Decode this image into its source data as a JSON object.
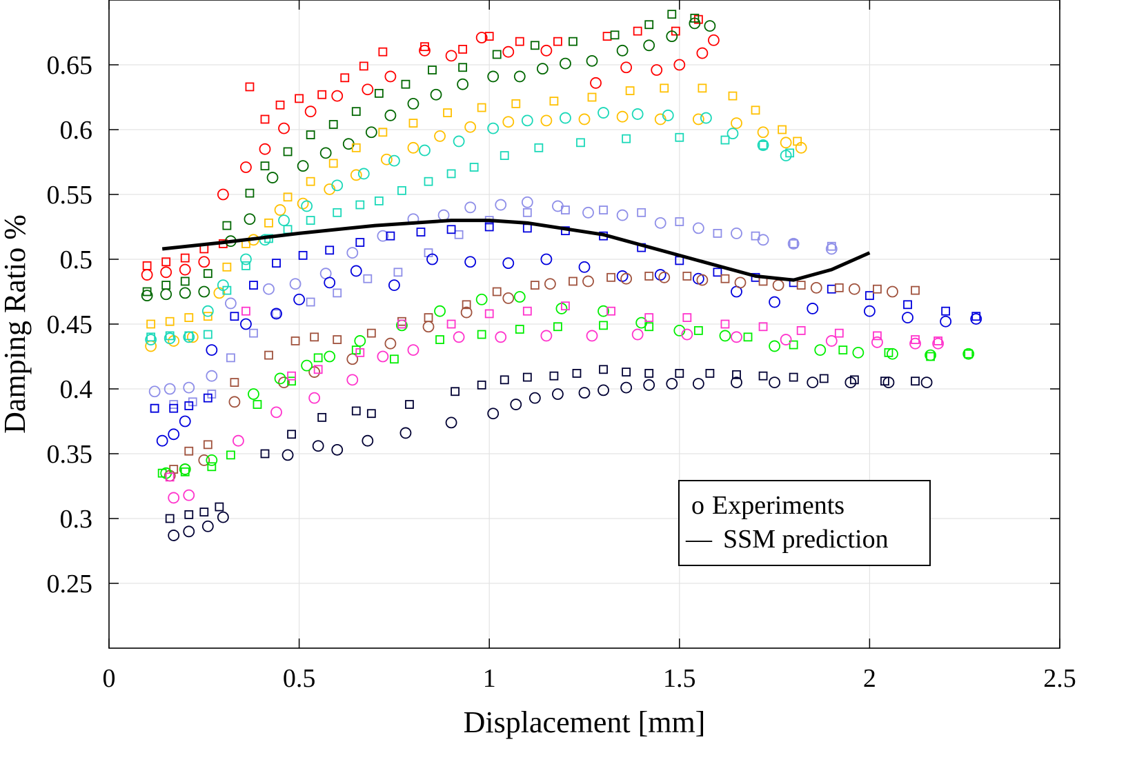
{
  "chart_data": {
    "type": "scatter",
    "title": "",
    "xlabel": "Displacement [mm]",
    "ylabel": "Damping Ratio %",
    "xlim": [
      0,
      2.5
    ],
    "ylim": [
      0.2,
      0.7
    ],
    "xticks": [
      0,
      0.5,
      1,
      1.5,
      2,
      2.5
    ],
    "xtick_labels": [
      "0",
      "0.5",
      "1",
      "1.5",
      "2",
      "2.5"
    ],
    "yticks": [
      0.25,
      0.3,
      0.35,
      0.4,
      0.45,
      0.5,
      0.55,
      0.6,
      0.65
    ],
    "ytick_labels": [
      "0.25",
      "0.3",
      "0.35",
      "0.4",
      "0.45",
      "0.5",
      "0.55",
      "0.6",
      "0.65"
    ],
    "grid": true,
    "legend": {
      "position": "bottom-right",
      "entries": [
        {
          "marker": "o",
          "label": "Experiments"
        },
        {
          "marker": "—",
          "label": "SSM prediction"
        }
      ]
    },
    "series": [
      {
        "name": "red",
        "color": "#ff0000",
        "marker": "circle",
        "x": [
          0.1,
          0.15,
          0.2,
          0.25,
          0.3,
          0.36,
          0.41,
          0.46,
          0.53,
          0.6,
          0.68,
          0.74,
          0.83,
          0.9,
          0.98,
          1.05,
          1.15,
          1.28,
          1.36,
          1.44,
          1.5,
          1.56,
          1.59
        ],
        "y": [
          0.488,
          0.49,
          0.492,
          0.498,
          0.55,
          0.571,
          0.585,
          0.601,
          0.614,
          0.626,
          0.631,
          0.641,
          0.661,
          0.657,
          0.671,
          0.66,
          0.661,
          0.636,
          0.648,
          0.646,
          0.65,
          0.659,
          0.669
        ]
      },
      {
        "name": "red",
        "color": "#ff0000",
        "marker": "square",
        "x": [
          0.1,
          0.15,
          0.2,
          0.25,
          0.3,
          0.37,
          0.41,
          0.45,
          0.5,
          0.56,
          0.62,
          0.67,
          0.72,
          0.83,
          0.93,
          1,
          1.08,
          1.18,
          1.31,
          1.39,
          1.49,
          1.55
        ],
        "y": [
          0.495,
          0.498,
          0.501,
          0.508,
          0.512,
          0.633,
          0.608,
          0.619,
          0.624,
          0.627,
          0.64,
          0.649,
          0.66,
          0.664,
          0.662,
          0.672,
          0.668,
          0.668,
          0.672,
          0.676,
          0.676,
          0.685
        ]
      },
      {
        "name": "dark green",
        "color": "#006600",
        "marker": "circle",
        "x": [
          0.1,
          0.15,
          0.2,
          0.25,
          0.32,
          0.37,
          0.43,
          0.51,
          0.57,
          0.63,
          0.69,
          0.74,
          0.8,
          0.86,
          0.93,
          1.01,
          1.08,
          1.14,
          1.2,
          1.27,
          1.35,
          1.42,
          1.48,
          1.54,
          1.58
        ],
        "y": [
          0.472,
          0.473,
          0.474,
          0.475,
          0.514,
          0.531,
          0.563,
          0.572,
          0.582,
          0.589,
          0.598,
          0.611,
          0.62,
          0.627,
          0.635,
          0.641,
          0.641,
          0.647,
          0.651,
          0.653,
          0.661,
          0.665,
          0.672,
          0.682,
          0.68
        ]
      },
      {
        "name": "dark green",
        "color": "#006600",
        "marker": "square",
        "x": [
          0.1,
          0.15,
          0.2,
          0.26,
          0.31,
          0.37,
          0.41,
          0.47,
          0.53,
          0.59,
          0.65,
          0.71,
          0.78,
          0.85,
          0.93,
          1.02,
          1.12,
          1.22,
          1.33,
          1.42,
          1.48,
          1.54
        ],
        "y": [
          0.475,
          0.48,
          0.483,
          0.489,
          0.526,
          0.551,
          0.572,
          0.583,
          0.596,
          0.604,
          0.614,
          0.628,
          0.635,
          0.646,
          0.648,
          0.658,
          0.665,
          0.668,
          0.673,
          0.681,
          0.689,
          0.686
        ]
      },
      {
        "name": "yellow",
        "color": "#ffc000",
        "marker": "circle",
        "x": [
          0.11,
          0.17,
          0.22,
          0.29,
          0.38,
          0.45,
          0.51,
          0.58,
          0.65,
          0.73,
          0.8,
          0.87,
          0.95,
          1.05,
          1.15,
          1.25,
          1.35,
          1.45,
          1.55,
          1.65,
          1.72,
          1.78,
          1.82
        ],
        "y": [
          0.433,
          0.437,
          0.44,
          0.474,
          0.515,
          0.538,
          0.543,
          0.554,
          0.565,
          0.577,
          0.586,
          0.595,
          0.602,
          0.606,
          0.607,
          0.608,
          0.61,
          0.608,
          0.608,
          0.605,
          0.598,
          0.59,
          0.586
        ]
      },
      {
        "name": "yellow",
        "color": "#ffc000",
        "marker": "square",
        "x": [
          0.11,
          0.16,
          0.21,
          0.26,
          0.31,
          0.36,
          0.42,
          0.47,
          0.53,
          0.59,
          0.65,
          0.72,
          0.8,
          0.89,
          0.98,
          1.07,
          1.17,
          1.27,
          1.37,
          1.46,
          1.56,
          1.64,
          1.7,
          1.77,
          1.81
        ],
        "y": [
          0.45,
          0.452,
          0.455,
          0.456,
          0.494,
          0.512,
          0.528,
          0.548,
          0.56,
          0.574,
          0.586,
          0.598,
          0.605,
          0.613,
          0.617,
          0.62,
          0.622,
          0.625,
          0.63,
          0.632,
          0.632,
          0.626,
          0.615,
          0.6,
          0.591
        ]
      },
      {
        "name": "cyan",
        "color": "#1ad8b8",
        "marker": "circle",
        "x": [
          0.11,
          0.16,
          0.21,
          0.26,
          0.3,
          0.36,
          0.41,
          0.46,
          0.52,
          0.6,
          0.67,
          0.75,
          0.83,
          0.92,
          1.01,
          1.1,
          1.2,
          1.3,
          1.39,
          1.47,
          1.57,
          1.64,
          1.72,
          1.78
        ],
        "y": [
          0.438,
          0.439,
          0.44,
          0.46,
          0.48,
          0.5,
          0.515,
          0.53,
          0.541,
          0.557,
          0.566,
          0.576,
          0.584,
          0.591,
          0.601,
          0.607,
          0.609,
          0.613,
          0.612,
          0.611,
          0.609,
          0.597,
          0.588,
          0.58
        ]
      },
      {
        "name": "cyan",
        "color": "#1ad8b8",
        "marker": "square",
        "x": [
          0.11,
          0.16,
          0.21,
          0.26,
          0.31,
          0.36,
          0.42,
          0.47,
          0.53,
          0.6,
          0.66,
          0.71,
          0.77,
          0.84,
          0.9,
          0.96,
          1.04,
          1.13,
          1.24,
          1.36,
          1.5,
          1.62,
          1.72,
          1.79
        ],
        "y": [
          0.44,
          0.441,
          0.441,
          0.442,
          0.476,
          0.495,
          0.516,
          0.523,
          0.53,
          0.536,
          0.542,
          0.545,
          0.553,
          0.56,
          0.566,
          0.571,
          0.58,
          0.586,
          0.59,
          0.593,
          0.594,
          0.592,
          0.588,
          0.582
        ]
      },
      {
        "name": "lavender",
        "color": "#8e8ee8",
        "marker": "circle",
        "x": [
          0.12,
          0.16,
          0.21,
          0.27,
          0.32,
          0.42,
          0.49,
          0.57,
          0.64,
          0.72,
          0.8,
          0.88,
          0.95,
          1.03,
          1.1,
          1.18,
          1.26,
          1.35,
          1.45,
          1.55,
          1.65,
          1.72,
          1.8,
          1.9
        ],
        "y": [
          0.398,
          0.4,
          0.401,
          0.41,
          0.466,
          0.477,
          0.481,
          0.489,
          0.505,
          0.518,
          0.531,
          0.534,
          0.54,
          0.542,
          0.544,
          0.541,
          0.536,
          0.534,
          0.528,
          0.524,
          0.52,
          0.515,
          0.512,
          0.508
        ]
      },
      {
        "name": "lavender",
        "color": "#8e8ee8",
        "marker": "square",
        "x": [
          0.12,
          0.17,
          0.22,
          0.27,
          0.32,
          0.38,
          0.44,
          0.53,
          0.6,
          0.68,
          0.76,
          0.84,
          0.92,
          1,
          1.1,
          1.2,
          1.3,
          1.4,
          1.5,
          1.6,
          1.7,
          1.8,
          1.9
        ],
        "y": [
          0.385,
          0.388,
          0.39,
          0.396,
          0.424,
          0.443,
          0.458,
          0.467,
          0.474,
          0.485,
          0.49,
          0.505,
          0.519,
          0.53,
          0.536,
          0.538,
          0.538,
          0.536,
          0.529,
          0.52,
          0.518,
          0.512,
          0.51
        ]
      },
      {
        "name": "blue",
        "color": "#0000dd",
        "marker": "circle",
        "x": [
          0.14,
          0.17,
          0.2,
          0.27,
          0.36,
          0.44,
          0.5,
          0.58,
          0.65,
          0.75,
          0.85,
          0.95,
          1.05,
          1.15,
          1.25,
          1.35,
          1.45,
          1.55,
          1.65,
          1.75,
          1.85,
          2,
          2.1,
          2.2,
          2.28
        ],
        "y": [
          0.36,
          0.365,
          0.375,
          0.43,
          0.45,
          0.458,
          0.469,
          0.482,
          0.491,
          0.48,
          0.5,
          0.498,
          0.497,
          0.5,
          0.494,
          0.487,
          0.488,
          0.485,
          0.475,
          0.467,
          0.462,
          0.46,
          0.455,
          0.452,
          0.454
        ]
      },
      {
        "name": "blue",
        "color": "#0000dd",
        "marker": "square",
        "x": [
          0.12,
          0.17,
          0.21,
          0.26,
          0.33,
          0.38,
          0.44,
          0.51,
          0.58,
          0.66,
          0.74,
          0.82,
          0.9,
          1,
          1.1,
          1.2,
          1.3,
          1.4,
          1.5,
          1.6,
          1.7,
          1.8,
          1.9,
          2,
          2.1,
          2.2,
          2.28
        ],
        "y": [
          0.385,
          0.385,
          0.387,
          0.393,
          0.456,
          0.48,
          0.497,
          0.503,
          0.507,
          0.513,
          0.518,
          0.521,
          0.523,
          0.525,
          0.524,
          0.522,
          0.518,
          0.509,
          0.499,
          0.49,
          0.486,
          0.482,
          0.477,
          0.472,
          0.465,
          0.46,
          0.456
        ]
      },
      {
        "name": "brown",
        "color": "#a0523d",
        "marker": "circle",
        "x": [
          0.16,
          0.2,
          0.25,
          0.33,
          0.46,
          0.54,
          0.64,
          0.74,
          0.84,
          0.94,
          1.05,
          1.16,
          1.26,
          1.36,
          1.46,
          1.56,
          1.66,
          1.76,
          1.86,
          1.96,
          2.06
        ],
        "y": [
          0.333,
          0.338,
          0.345,
          0.39,
          0.405,
          0.413,
          0.423,
          0.435,
          0.448,
          0.459,
          0.47,
          0.481,
          0.483,
          0.485,
          0.486,
          0.484,
          0.482,
          0.48,
          0.478,
          0.477,
          0.475
        ]
      },
      {
        "name": "brown",
        "color": "#a0523d",
        "marker": "square",
        "x": [
          0.17,
          0.21,
          0.26,
          0.33,
          0.42,
          0.49,
          0.54,
          0.6,
          0.69,
          0.77,
          0.84,
          0.94,
          1.02,
          1.12,
          1.22,
          1.32,
          1.42,
          1.52,
          1.62,
          1.72,
          1.82,
          1.92,
          2.02,
          2.12
        ],
        "y": [
          0.338,
          0.352,
          0.357,
          0.405,
          0.426,
          0.437,
          0.44,
          0.438,
          0.443,
          0.452,
          0.455,
          0.465,
          0.475,
          0.48,
          0.483,
          0.486,
          0.487,
          0.487,
          0.485,
          0.483,
          0.48,
          0.478,
          0.477,
          0.476
        ]
      },
      {
        "name": "green",
        "color": "#00ee00",
        "marker": "circle",
        "x": [
          0.15,
          0.2,
          0.27,
          0.38,
          0.45,
          0.52,
          0.58,
          0.66,
          0.77,
          0.87,
          0.98,
          1.08,
          1.19,
          1.3,
          1.4,
          1.5,
          1.62,
          1.75,
          1.87,
          1.97,
          2.06,
          2.16,
          2.26
        ],
        "y": [
          0.335,
          0.338,
          0.345,
          0.396,
          0.408,
          0.418,
          0.425,
          0.437,
          0.449,
          0.46,
          0.469,
          0.471,
          0.462,
          0.46,
          0.451,
          0.445,
          0.441,
          0.433,
          0.43,
          0.428,
          0.427,
          0.426,
          0.427
        ]
      },
      {
        "name": "green",
        "color": "#00ee00",
        "marker": "square",
        "x": [
          0.14,
          0.2,
          0.27,
          0.32,
          0.39,
          0.48,
          0.55,
          0.65,
          0.75,
          0.87,
          0.98,
          1.08,
          1.18,
          1.3,
          1.42,
          1.55,
          1.68,
          1.8,
          1.93,
          2.05,
          2.16,
          2.26
        ],
        "y": [
          0.335,
          0.336,
          0.34,
          0.349,
          0.388,
          0.406,
          0.424,
          0.43,
          0.423,
          0.438,
          0.442,
          0.446,
          0.448,
          0.449,
          0.448,
          0.445,
          0.44,
          0.434,
          0.43,
          0.428,
          0.425,
          0.427
        ]
      },
      {
        "name": "magenta",
        "color": "#ff33cc",
        "marker": "circle",
        "x": [
          0.17,
          0.21,
          0.34,
          0.44,
          0.54,
          0.64,
          0.72,
          0.8,
          0.92,
          1.03,
          1.15,
          1.27,
          1.39,
          1.52,
          1.65,
          1.78,
          1.9,
          2.02,
          2.12,
          2.18
        ],
        "y": [
          0.316,
          0.318,
          0.36,
          0.382,
          0.393,
          0.407,
          0.425,
          0.43,
          0.44,
          0.44,
          0.441,
          0.441,
          0.442,
          0.442,
          0.44,
          0.438,
          0.437,
          0.436,
          0.435,
          0.435
        ]
      },
      {
        "name": "magenta",
        "color": "#ff33cc",
        "marker": "square",
        "x": [
          0.16,
          0.36,
          0.48,
          0.55,
          0.66,
          0.77,
          0.9,
          1,
          1.1,
          1.2,
          1.32,
          1.42,
          1.52,
          1.62,
          1.72,
          1.82,
          1.92,
          2.02,
          2.12,
          2.18
        ],
        "y": [
          0.332,
          0.46,
          0.41,
          0.415,
          0.428,
          0.45,
          0.45,
          0.458,
          0.46,
          0.464,
          0.46,
          0.455,
          0.455,
          0.45,
          0.448,
          0.445,
          0.443,
          0.441,
          0.438,
          0.437
        ]
      },
      {
        "name": "navy",
        "color": "#000033",
        "marker": "circle",
        "x": [
          0.17,
          0.21,
          0.26,
          0.3,
          0.47,
          0.55,
          0.6,
          0.68,
          0.78,
          0.9,
          1.01,
          1.07,
          1.12,
          1.18,
          1.25,
          1.3,
          1.36,
          1.42,
          1.48,
          1.55,
          1.65,
          1.75,
          1.85,
          1.95,
          2.05,
          2.15
        ],
        "y": [
          0.287,
          0.29,
          0.294,
          0.301,
          0.349,
          0.356,
          0.353,
          0.36,
          0.366,
          0.374,
          0.381,
          0.388,
          0.393,
          0.396,
          0.397,
          0.399,
          0.401,
          0.403,
          0.404,
          0.404,
          0.405,
          0.405,
          0.405,
          0.405,
          0.405,
          0.405
        ]
      },
      {
        "name": "navy",
        "color": "#000033",
        "marker": "square",
        "x": [
          0.16,
          0.21,
          0.25,
          0.29,
          0.41,
          0.48,
          0.56,
          0.65,
          0.69,
          0.79,
          0.91,
          0.98,
          1.04,
          1.1,
          1.17,
          1.23,
          1.3,
          1.36,
          1.42,
          1.5,
          1.58,
          1.65,
          1.72,
          1.8,
          1.88,
          1.96,
          2.04,
          2.12
        ],
        "y": [
          0.3,
          0.303,
          0.305,
          0.309,
          0.35,
          0.365,
          0.378,
          0.383,
          0.381,
          0.388,
          0.398,
          0.403,
          0.407,
          0.409,
          0.41,
          0.412,
          0.415,
          0.413,
          0.412,
          0.412,
          0.412,
          0.411,
          0.41,
          0.409,
          0.408,
          0.407,
          0.406,
          0.406
        ]
      },
      {
        "name": "SSM prediction",
        "color": "#000000",
        "marker": "line",
        "x": [
          0.14,
          0.3,
          0.5,
          0.7,
          0.9,
          1,
          1.1,
          1.3,
          1.5,
          1.7,
          1.8,
          1.9,
          2
        ],
        "y": [
          0.508,
          0.513,
          0.52,
          0.526,
          0.53,
          0.53,
          0.528,
          0.519,
          0.503,
          0.487,
          0.484,
          0.492,
          0.505
        ]
      }
    ]
  }
}
